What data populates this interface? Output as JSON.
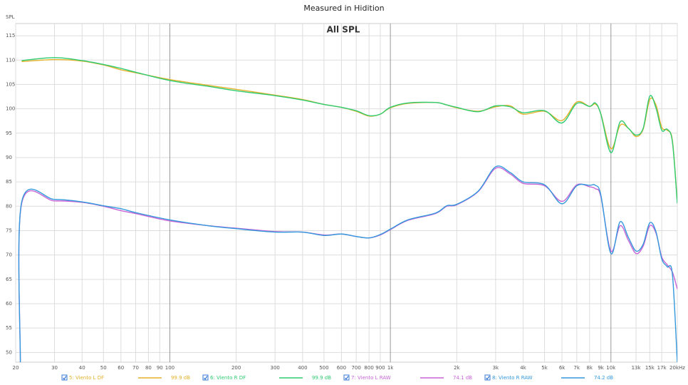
{
  "chart_data": {
    "type": "line",
    "title": "Measured in Hidition",
    "subtitle": "All SPL",
    "y_label": "SPL",
    "x_log": true,
    "grid": true,
    "legend": "bottom",
    "xlim": [
      20,
      20000
    ],
    "ylim": [
      48,
      117.5
    ],
    "xticks": [
      20,
      30,
      40,
      50,
      60,
      70,
      80,
      90,
      100,
      200,
      300,
      400,
      500,
      600,
      700,
      800,
      900,
      {
        "value": 1000,
        "label": "1k"
      },
      {
        "value": 2000,
        "label": "2k"
      },
      {
        "value": 3000,
        "label": "3k"
      },
      {
        "value": 4000,
        "label": "4k"
      },
      {
        "value": 5000,
        "label": "5k"
      },
      {
        "value": 6000,
        "label": "6k"
      },
      {
        "value": 7000,
        "label": "7k"
      },
      {
        "value": 8000,
        "label": "8k"
      },
      {
        "value": 9000,
        "label": "9k"
      },
      {
        "value": 10000,
        "label": "10k"
      },
      {
        "value": 13000,
        "label": "13k"
      },
      {
        "value": 15000,
        "label": "15k"
      },
      {
        "value": 17000,
        "label": "17k"
      },
      {
        "value": 20000,
        "label": "20kHz"
      }
    ],
    "yticks": [
      50,
      55,
      60,
      65,
      70,
      75,
      80,
      85,
      90,
      95,
      100,
      105,
      110,
      115
    ],
    "x": [
      21,
      21.3,
      30,
      40,
      50,
      60,
      70,
      100,
      150,
      200,
      300,
      400,
      500,
      600,
      700,
      800,
      900,
      1000,
      1200,
      1600,
      1800,
      2000,
      2500,
      3000,
      3500,
      4000,
      5000,
      6000,
      7000,
      8000,
      8500,
      9000,
      10000,
      11000,
      12000,
      13000,
      14000,
      15000,
      16000,
      17000,
      18000,
      19000,
      20000
    ],
    "series": [
      {
        "name": "5: Viento L DF",
        "color": "#e3b12a",
        "level": "99.9 dB",
        "values": [
          null,
          109.7,
          110.1,
          109.8,
          109.0,
          108.0,
          107.4,
          106.0,
          104.8,
          104.0,
          102.8,
          101.9,
          100.9,
          100.3,
          99.5,
          98.5,
          98.9,
          100.2,
          101.1,
          101.3,
          100.8,
          100.2,
          99.5,
          100.4,
          100.6,
          98.9,
          99.5,
          97.6,
          101.4,
          100.5,
          101.0,
          99.0,
          91.8,
          96.6,
          96.0,
          94.3,
          95.8,
          101.9,
          100.8,
          96.2,
          95.6,
          93.5,
          80.8
        ]
      },
      {
        "name": "6: Viento R DF",
        "color": "#2ecc71",
        "level": "99.9 dB",
        "values": [
          null,
          109.9,
          110.5,
          109.9,
          109.1,
          108.3,
          107.5,
          105.8,
          104.6,
          103.7,
          102.7,
          101.8,
          100.9,
          100.3,
          99.6,
          98.6,
          98.9,
          100.3,
          101.2,
          101.3,
          100.8,
          100.3,
          99.4,
          100.6,
          100.4,
          99.2,
          99.6,
          97.1,
          101.1,
          100.5,
          101.2,
          98.9,
          91.0,
          97.3,
          96.0,
          94.6,
          96.0,
          102.6,
          100.2,
          95.6,
          95.8,
          93.2,
          80.6
        ]
      },
      {
        "name": "7: Viento L RAW",
        "color": "#c764d6",
        "level": "74.1 dB",
        "values": [
          48,
          80.6,
          81.1,
          80.8,
          80.0,
          79.1,
          78.5,
          77.0,
          76.0,
          75.5,
          74.8,
          74.7,
          74.1,
          74.3,
          73.8,
          73.5,
          74.1,
          75.2,
          77.1,
          78.5,
          80.0,
          80.3,
          83.0,
          87.8,
          86.6,
          84.7,
          84.2,
          81.0,
          84.4,
          84.0,
          83.6,
          82.0,
          70.8,
          76.0,
          73.0,
          70.3,
          71.8,
          76.0,
          74.5,
          69.6,
          68.0,
          66.5,
          63
        ]
      },
      {
        "name": "8: Viento R RAW",
        "color": "#3399dd",
        "level": "74.2 dB",
        "values": [
          48,
          80.9,
          81.4,
          80.9,
          80.1,
          79.5,
          78.7,
          77.2,
          76.0,
          75.4,
          74.7,
          74.7,
          74.0,
          74.3,
          73.8,
          73.5,
          74.2,
          75.3,
          77.2,
          78.6,
          80.1,
          80.4,
          83.1,
          88.1,
          86.9,
          85.0,
          84.4,
          80.5,
          84.2,
          84.3,
          84.3,
          82.3,
          70.3,
          76.8,
          73.6,
          70.8,
          72.2,
          76.6,
          74.8,
          69.2,
          67.6,
          66.0,
          48
        ]
      }
    ]
  }
}
